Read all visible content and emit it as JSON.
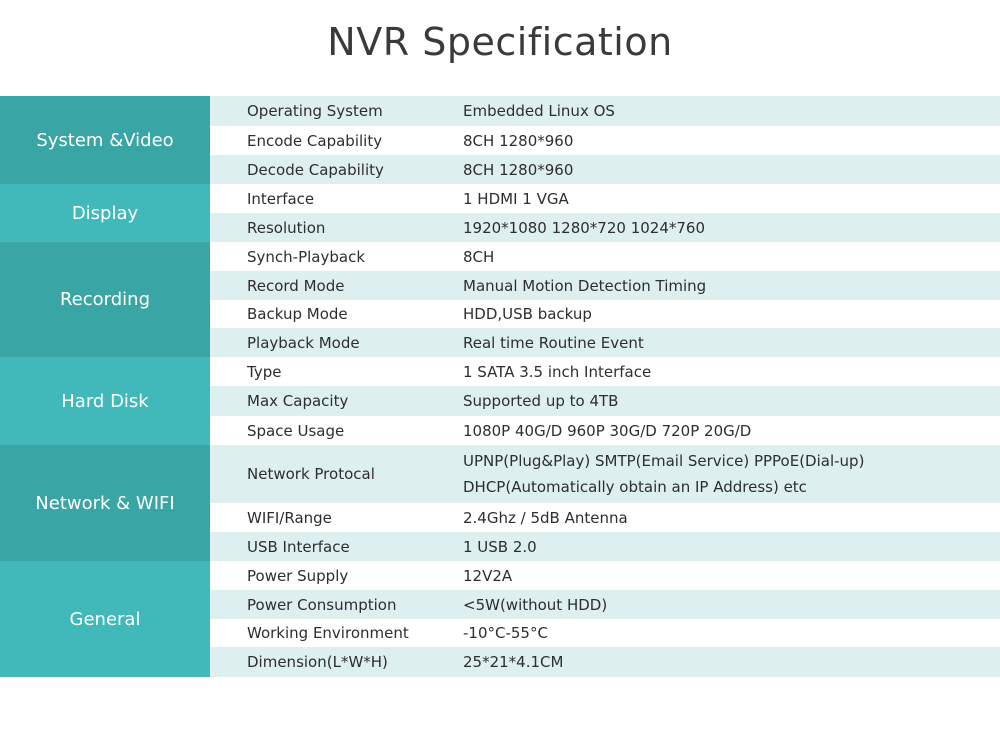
{
  "title": "NVR Specification",
  "groups": [
    {
      "label": "System &Video",
      "rows": [
        {
          "name": "Operating System",
          "value": [
            "Embedded Linux OS"
          ]
        },
        {
          "name": "Encode Capability",
          "value": [
            "8CH 1280*960"
          ]
        },
        {
          "name": "Decode Capability",
          "value": [
            "8CH 1280*960"
          ]
        }
      ]
    },
    {
      "label": "Display",
      "rows": [
        {
          "name": "Interface",
          "value": [
            "1 HDMI 1 VGA"
          ]
        },
        {
          "name": "Resolution",
          "value": [
            "1920*1080  1280*720  1024*760"
          ]
        }
      ]
    },
    {
      "label": "Recording",
      "rows": [
        {
          "name": "Synch-Playback",
          "value": [
            "8CH"
          ]
        },
        {
          "name": "Record Mode",
          "value": [
            "Manual  Motion Detection  Timing"
          ]
        },
        {
          "name": "Backup Mode",
          "value": [
            "HDD,USB backup"
          ]
        },
        {
          "name": "Playback Mode",
          "value": [
            "Real time  Routine  Event"
          ]
        }
      ]
    },
    {
      "label": "Hard Disk",
      "rows": [
        {
          "name": "Type",
          "value": [
            "1 SATA 3.5 inch Interface"
          ]
        },
        {
          "name": "Max Capacity",
          "value": [
            "Supported up to 4TB"
          ]
        },
        {
          "name": "Space Usage",
          "value": [
            "1080P 40G/D  960P 30G/D  720P 20G/D"
          ]
        }
      ]
    },
    {
      "label": "Network & WIFI",
      "rows": [
        {
          "name": "Network Protocal",
          "value": [
            "UPNP(Plug&Play) SMTP(Email Service) PPPoE(Dial-up)",
            "DHCP(Automatically obtain an IP Address) etc"
          ]
        },
        {
          "name": "WIFI/Range",
          "value": [
            "2.4Ghz / 5dB Antenna"
          ]
        },
        {
          "name": "USB Interface",
          "value": [
            "1 USB 2.0"
          ]
        }
      ]
    },
    {
      "label": "General",
      "rows": [
        {
          "name": "Power  Supply",
          "value": [
            "12V2A"
          ]
        },
        {
          "name": "Power Consumption",
          "value": [
            "<5W(without HDD)"
          ]
        },
        {
          "name": "Working Environment",
          "value": [
            "-10°C-55°C"
          ]
        },
        {
          "name": "Dimension(L*W*H)",
          "value": [
            "25*21*4.1CM"
          ]
        }
      ]
    }
  ]
}
